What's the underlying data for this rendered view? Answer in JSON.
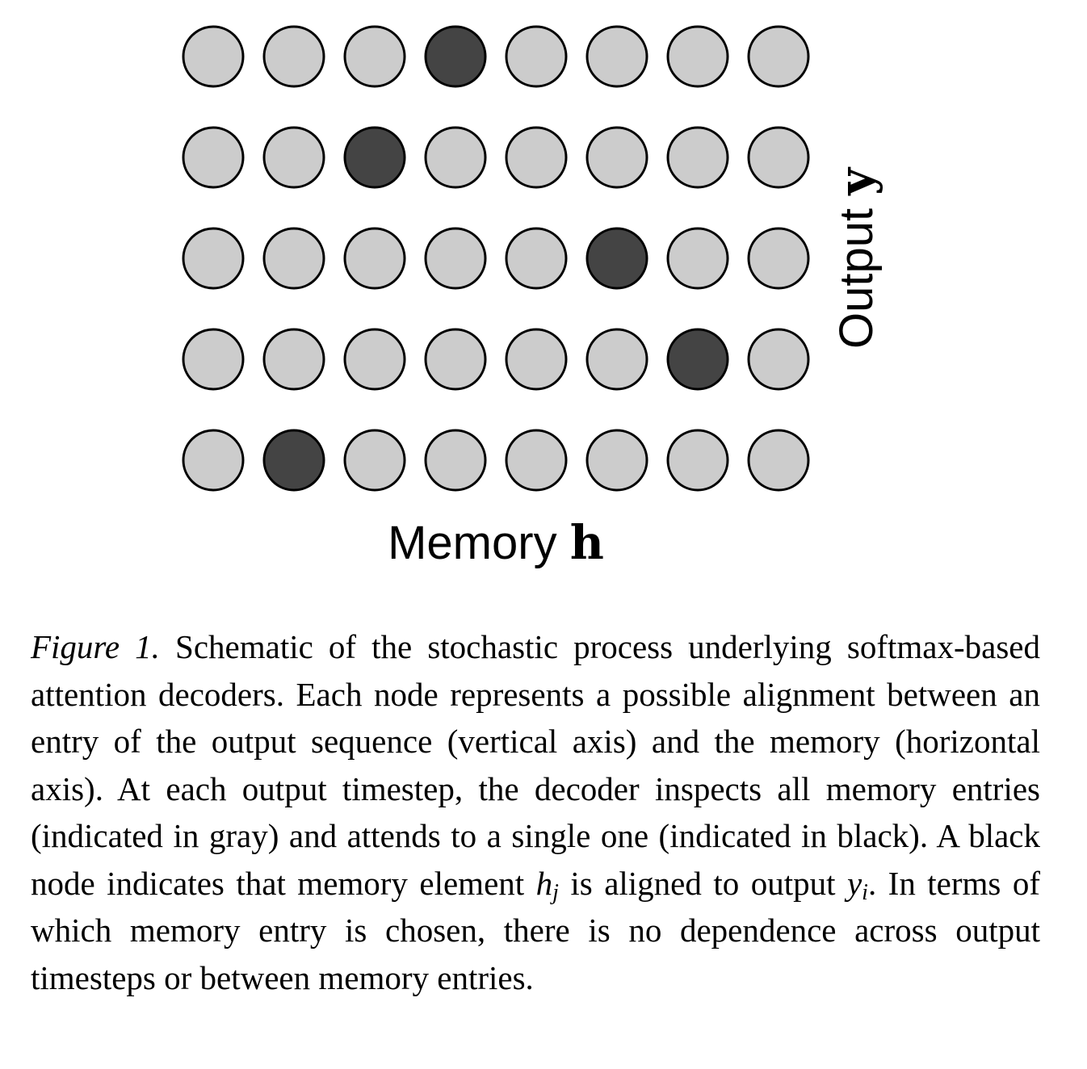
{
  "figure": {
    "grid": {
      "rows": 5,
      "cols": 8,
      "selected_col_per_row": [
        3,
        2,
        5,
        6,
        1
      ],
      "colors": {
        "inactive": "#cccccc",
        "active": "#444444",
        "stroke": "#000000"
      }
    },
    "axes": {
      "x_label_text": "Memory",
      "x_label_symbol": "h",
      "y_label_text": "Output",
      "y_label_symbol": "y"
    },
    "caption": {
      "label": "Figure 1.",
      "part1": "Schematic of the stochastic process underlying softmax-based attention decoders.  Each node represents a possible alignment between an entry of the output sequence (vertical axis) and the memory (horizontal axis). At each output timestep, the decoder inspects all memory entries (indicated in gray) and attends to a single one (indicated in black).  A black node indicates that memory element",
      "h_sym": "h",
      "h_sub": "j",
      "part2": "is aligned to output",
      "y_sym": "y",
      "y_sub": "i",
      "part3": ". In terms of which memory entry is chosen, there is no dependence across output timesteps or between memory entries."
    }
  }
}
